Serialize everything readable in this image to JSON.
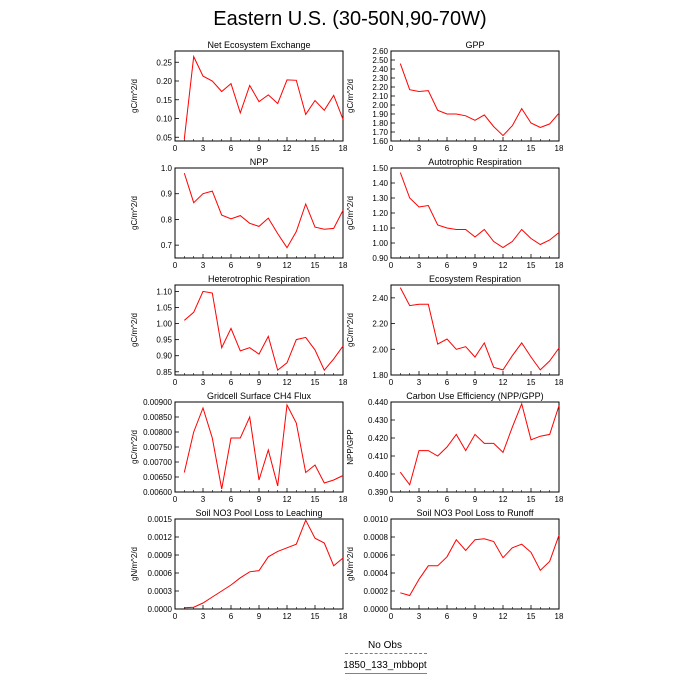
{
  "figure": {
    "title": "Eastern U.S. (30-50N,90-70W)",
    "legend": [
      {
        "label": "No Obs",
        "color": "#6a6aff",
        "style": "dashed"
      },
      {
        "label": "1850_133_mbbopt",
        "color": "#ff4c4c",
        "style": "solid"
      }
    ]
  },
  "chart_data": [
    {
      "type": "line",
      "title": "Net Ecosystem Exchange",
      "ylabel": "gC/m^2/d",
      "xlim": [
        0,
        18
      ],
      "ylim": [
        0.04,
        0.28
      ],
      "xticks": [
        0,
        3,
        6,
        9,
        12,
        15,
        18
      ],
      "yticks": [
        "0.05",
        "0.10",
        "0.15",
        "0.20",
        "0.25"
      ],
      "x": [
        1,
        2,
        3,
        4,
        5,
        6,
        7,
        8,
        9,
        10,
        11,
        12,
        13,
        14,
        15,
        16,
        17,
        18
      ],
      "series": [
        {
          "name": "1850_133_mbbopt",
          "color": "#ff0000",
          "values": [
            0.045,
            0.265,
            0.213,
            0.2,
            0.172,
            0.193,
            0.115,
            0.188,
            0.145,
            0.163,
            0.14,
            0.203,
            0.202,
            0.111,
            0.148,
            0.122,
            0.162,
            0.098
          ]
        }
      ]
    },
    {
      "type": "line",
      "title": "GPP",
      "ylabel": "gC/m^2/d",
      "xlim": [
        0,
        18
      ],
      "ylim": [
        1.6,
        2.6
      ],
      "xticks": [
        0,
        3,
        6,
        9,
        12,
        15,
        18
      ],
      "yticks": [
        "1.60",
        "1.70",
        "1.80",
        "1.90",
        "2.00",
        "2.10",
        "2.20",
        "2.30",
        "2.40",
        "2.50",
        "2.60"
      ],
      "x": [
        1,
        2,
        3,
        4,
        5,
        6,
        7,
        8,
        9,
        10,
        11,
        12,
        13,
        14,
        15,
        16,
        17,
        18
      ],
      "series": [
        {
          "name": "1850_133_mbbopt",
          "color": "#ff0000",
          "values": [
            2.46,
            2.17,
            2.15,
            2.16,
            1.94,
            1.9,
            1.9,
            1.88,
            1.83,
            1.89,
            1.76,
            1.66,
            1.77,
            1.96,
            1.8,
            1.75,
            1.79,
            1.91
          ]
        }
      ]
    },
    {
      "type": "line",
      "title": "NPP",
      "ylabel": "gC/m^2/d",
      "xlim": [
        0,
        18
      ],
      "ylim": [
        0.65,
        1.0
      ],
      "xticks": [
        0,
        3,
        6,
        9,
        12,
        15,
        18
      ],
      "yticks": [
        "0.7",
        "0.8",
        "0.9",
        "1.0"
      ],
      "x": [
        1,
        2,
        3,
        4,
        5,
        6,
        7,
        8,
        9,
        10,
        11,
        12,
        13,
        14,
        15,
        16,
        17,
        18
      ],
      "series": [
        {
          "name": "1850_133_mbbopt",
          "color": "#ff0000",
          "values": [
            0.98,
            0.865,
            0.9,
            0.91,
            0.817,
            0.802,
            0.815,
            0.785,
            0.773,
            0.805,
            0.745,
            0.69,
            0.753,
            0.86,
            0.77,
            0.762,
            0.765,
            0.835
          ]
        }
      ]
    },
    {
      "type": "line",
      "title": "Autotrophic Respiration",
      "ylabel": "gC/m^2/d",
      "xlim": [
        0,
        18
      ],
      "ylim": [
        0.9,
        1.5
      ],
      "xticks": [
        0,
        3,
        6,
        9,
        12,
        15,
        18
      ],
      "yticks": [
        "0.90",
        "1.00",
        "1.10",
        "1.20",
        "1.30",
        "1.40",
        "1.50"
      ],
      "x": [
        1,
        2,
        3,
        4,
        5,
        6,
        7,
        8,
        9,
        10,
        11,
        12,
        13,
        14,
        15,
        16,
        17,
        18
      ],
      "series": [
        {
          "name": "1850_133_mbbopt",
          "color": "#ff0000",
          "values": [
            1.47,
            1.3,
            1.24,
            1.25,
            1.12,
            1.1,
            1.09,
            1.09,
            1.04,
            1.09,
            1.01,
            0.97,
            1.01,
            1.09,
            1.03,
            0.99,
            1.02,
            1.07
          ]
        }
      ]
    },
    {
      "type": "line",
      "title": "Heterotrophic Respiration",
      "ylabel": "gC/m^2/d",
      "xlim": [
        0,
        18
      ],
      "ylim": [
        0.84,
        1.12
      ],
      "xticks": [
        0,
        3,
        6,
        9,
        12,
        15,
        18
      ],
      "yticks": [
        "0.85",
        "0.90",
        "0.95",
        "1.00",
        "1.05",
        "1.10"
      ],
      "x": [
        1,
        2,
        3,
        4,
        5,
        6,
        7,
        8,
        9,
        10,
        11,
        12,
        13,
        14,
        15,
        16,
        17,
        18
      ],
      "series": [
        {
          "name": "1850_133_mbbopt",
          "color": "#ff0000",
          "values": [
            1.01,
            1.035,
            1.1,
            1.095,
            0.925,
            0.985,
            0.915,
            0.925,
            0.905,
            0.96,
            0.855,
            0.878,
            0.95,
            0.957,
            0.918,
            0.855,
            0.89,
            0.93
          ]
        }
      ]
    },
    {
      "type": "line",
      "title": "Ecosystem Respiration",
      "ylabel": "gC/m^2/d",
      "xlim": [
        0,
        18
      ],
      "ylim": [
        1.8,
        2.5
      ],
      "xticks": [
        0,
        3,
        6,
        9,
        12,
        15,
        18
      ],
      "yticks": [
        "1.80",
        "2.00",
        "2.20",
        "2.40"
      ],
      "x": [
        1,
        2,
        3,
        4,
        5,
        6,
        7,
        8,
        9,
        10,
        11,
        12,
        13,
        14,
        15,
        16,
        17,
        18
      ],
      "series": [
        {
          "name": "1850_133_mbbopt",
          "color": "#ff0000",
          "values": [
            2.48,
            2.34,
            2.35,
            2.35,
            2.04,
            2.08,
            2.0,
            2.02,
            1.94,
            2.05,
            1.86,
            1.84,
            1.95,
            2.05,
            1.94,
            1.84,
            1.91,
            2.01
          ]
        }
      ]
    },
    {
      "type": "line",
      "title": "Gridcell Surface CH4 Flux",
      "ylabel": "gC/m^2/d",
      "xlim": [
        0,
        18
      ],
      "ylim": [
        0.006,
        0.009
      ],
      "xticks": [
        0,
        3,
        6,
        9,
        12,
        15,
        18
      ],
      "yticks": [
        "0.00600",
        "0.00650",
        "0.00700",
        "0.00750",
        "0.00800",
        "0.00850",
        "0.00900"
      ],
      "x": [
        1,
        2,
        3,
        4,
        5,
        6,
        7,
        8,
        9,
        10,
        11,
        12,
        13,
        14,
        15,
        16,
        17,
        18
      ],
      "series": [
        {
          "name": "1850_133_mbbopt",
          "color": "#ff0000",
          "values": [
            0.00665,
            0.008,
            0.0088,
            0.0078,
            0.0061,
            0.0078,
            0.0078,
            0.0085,
            0.0064,
            0.0074,
            0.0062,
            0.0089,
            0.0083,
            0.00665,
            0.0069,
            0.0063,
            0.0064,
            0.00655
          ]
        }
      ]
    },
    {
      "type": "line",
      "title": "Carbon Use Efficiency (NPP/GPP)",
      "ylabel": "NPP/GPP",
      "xlim": [
        0,
        18
      ],
      "ylim": [
        0.39,
        0.44
      ],
      "xticks": [
        0,
        3,
        6,
        9,
        12,
        15,
        18
      ],
      "yticks": [
        "0.390",
        "0.400",
        "0.410",
        "0.420",
        "0.430",
        "0.440"
      ],
      "x": [
        1,
        2,
        3,
        4,
        5,
        6,
        7,
        8,
        9,
        10,
        11,
        12,
        13,
        14,
        15,
        16,
        17,
        18
      ],
      "series": [
        {
          "name": "1850_133_mbbopt",
          "color": "#ff0000",
          "values": [
            0.401,
            0.394,
            0.413,
            0.413,
            0.41,
            0.415,
            0.422,
            0.413,
            0.422,
            0.417,
            0.417,
            0.412,
            0.426,
            0.439,
            0.419,
            0.421,
            0.422,
            0.438
          ]
        }
      ]
    },
    {
      "type": "line",
      "title": "Soil NO3 Pool Loss to Leaching",
      "ylabel": "gN/m^2/d",
      "xlim": [
        0,
        18
      ],
      "ylim": [
        0,
        0.0015
      ],
      "xticks": [
        0,
        3,
        6,
        9,
        12,
        15,
        18
      ],
      "yticks": [
        "0.0000",
        "0.0003",
        "0.0006",
        "0.0009",
        "0.0012",
        "0.0015"
      ],
      "x": [
        1,
        2,
        3,
        4,
        5,
        6,
        7,
        8,
        9,
        10,
        11,
        12,
        13,
        14,
        15,
        16,
        17,
        18
      ],
      "series": [
        {
          "name": "1850_133_mbbopt",
          "color": "#ff0000",
          "values": [
            2e-05,
            3e-05,
            0.0001,
            0.0002,
            0.0003,
            0.0004,
            0.00052,
            0.00062,
            0.00064,
            0.00087,
            0.00096,
            0.00102,
            0.00108,
            0.00148,
            0.00118,
            0.0011,
            0.00072,
            0.00085
          ]
        }
      ]
    },
    {
      "type": "line",
      "title": "Soil NO3 Pool Loss to Runoff",
      "ylabel": "gN/m^2/d",
      "xlim": [
        0,
        18
      ],
      "ylim": [
        0,
        0.001
      ],
      "xticks": [
        0,
        3,
        6,
        9,
        12,
        15,
        18
      ],
      "yticks": [
        "0.0000",
        "0.0002",
        "0.0004",
        "0.0006",
        "0.0008",
        "0.0010"
      ],
      "x": [
        1,
        2,
        3,
        4,
        5,
        6,
        7,
        8,
        9,
        10,
        11,
        12,
        13,
        14,
        15,
        16,
        17,
        18
      ],
      "series": [
        {
          "name": "1850_133_mbbopt",
          "color": "#ff0000",
          "values": [
            0.00018,
            0.00015,
            0.00033,
            0.00048,
            0.00048,
            0.00058,
            0.00077,
            0.00065,
            0.00077,
            0.00078,
            0.00075,
            0.00057,
            0.00068,
            0.00072,
            0.00063,
            0.00043,
            0.00053,
            0.00082
          ]
        }
      ]
    }
  ]
}
